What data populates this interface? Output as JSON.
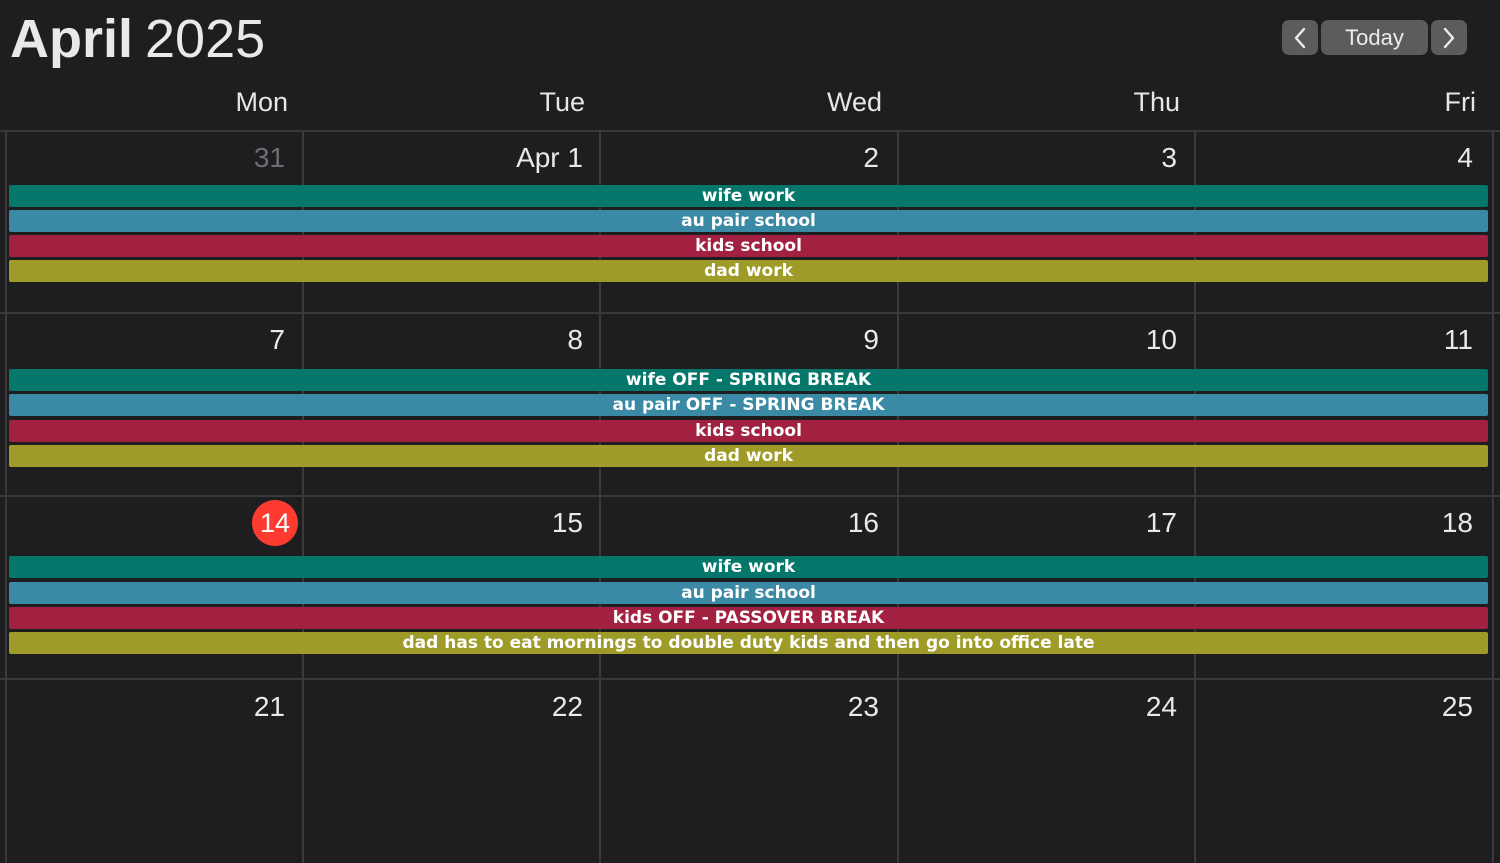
{
  "header": {
    "month": "April",
    "year": "2025",
    "today_label": "Today",
    "prev_icon": "chevron-left-icon",
    "next_icon": "chevron-right-icon"
  },
  "weekdays": [
    "Mon",
    "Tue",
    "Wed",
    "Thu",
    "Fri"
  ],
  "colors": {
    "background": "#1e1e20",
    "today_circle": "#fe3b30",
    "wife": "#05776a",
    "au_pair": "#3a8aa6",
    "kids": "#a22141",
    "dad": "#9e9b28"
  },
  "weeks": [
    {
      "days": [
        "31",
        "Apr 1",
        "2",
        "3",
        "4"
      ],
      "events": [
        {
          "label": "wife work",
          "color": "#05776a"
        },
        {
          "label": "au pair school",
          "color": "#3a8aa6"
        },
        {
          "label": "kids school",
          "color": "#a22141"
        },
        {
          "label": "dad work",
          "color": "#9e9b28"
        }
      ]
    },
    {
      "days": [
        "7",
        "8",
        "9",
        "10",
        "11"
      ],
      "events": [
        {
          "label": "wife OFF - SPRING  BREAK",
          "color": "#05776a"
        },
        {
          "label": "au pair OFF - SPRING BREAK",
          "color": "#3a8aa6"
        },
        {
          "label": "kids school",
          "color": "#a22141"
        },
        {
          "label": "dad work",
          "color": "#9e9b28"
        }
      ]
    },
    {
      "days": [
        "14",
        "15",
        "16",
        "17",
        "18"
      ],
      "events": [
        {
          "label": "wife work",
          "color": "#05776a"
        },
        {
          "label": "au pair school",
          "color": "#3a8aa6"
        },
        {
          "label": "kids OFF - PASSOVER BREAK",
          "color": "#a22141"
        },
        {
          "label": "dad has to eat mornings to double duty kids and then go into office late",
          "color": "#9e9b28"
        }
      ]
    },
    {
      "days": [
        "21",
        "22",
        "23",
        "24",
        "25"
      ],
      "events": []
    }
  ]
}
